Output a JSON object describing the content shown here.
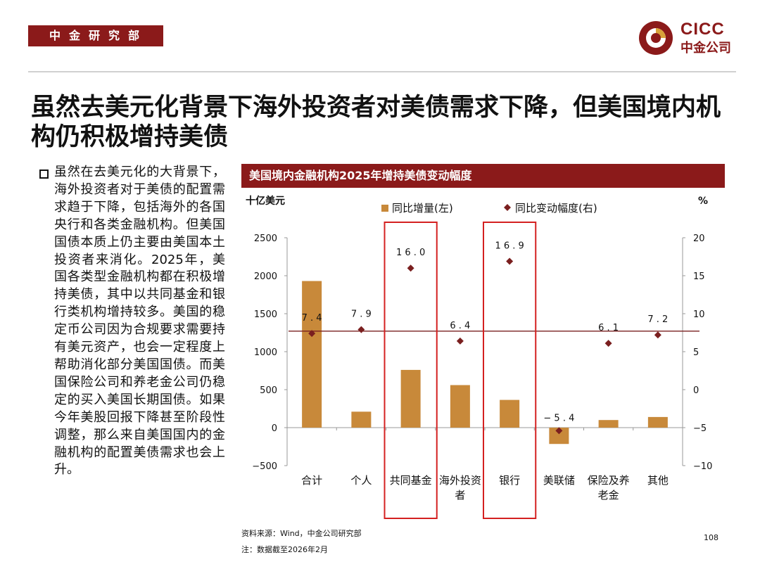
{
  "header": {
    "department": "中金研究部"
  },
  "logo": {
    "english": "CICC",
    "chinese": "中金公司"
  },
  "title": "虽然去美元化背景下海外投资者对美债需求下降，但美国境内机构仍积极增持美债",
  "bullet": "虽然在去美元化的大背景下，海外投资者对于美债的配置需求趋于下降，包括海外的各国央行和各类金融机构。但美国国债本质上仍主要由美国本土投资者来消化。2025年，美国各类型金融机构都在积极增持美债，其中以共同基金和银行类机构增持较多。美国的稳定币公司因为合规要求需要持有美元资产，也会一定程度上帮助消化部分美国国债。而美国保险公司和养老金公司仍稳定的买入美国长期国债。如果今年美股回报下降甚至阶段性调整，那么来自美国国内的金融机构的配置美债需求也会上升。",
  "chart_header": "美国境内金融机构2025年增持美债变动幅度",
  "footer": {
    "source": "资料来源：Wind，中金公司研究部",
    "note": "注：数据截至2026年2月",
    "page": "108"
  },
  "colors": {
    "brand": "#8b1a1a",
    "bar": "#c8893a",
    "marker": "#7a1f1f",
    "highlight": "#d42020"
  },
  "chart_data": {
    "type": "bar",
    "y_left_label": "十亿美元",
    "y_right_label": "%",
    "categories": [
      "合计",
      "个人",
      "共同基金",
      "海外投资者",
      "银行",
      "美联储",
      "保险及养老金",
      "其他"
    ],
    "categories_display": [
      [
        "合计"
      ],
      [
        "个人"
      ],
      [
        "共同基金"
      ],
      [
        "海外投资",
        "者"
      ],
      [
        "银行"
      ],
      [
        "美联储"
      ],
      [
        "保险及养",
        "老金"
      ],
      [
        "其他"
      ]
    ],
    "series": [
      {
        "name": "同比增量(左)",
        "kind": "bar",
        "axis": "left",
        "values": [
          1930,
          210,
          760,
          560,
          365,
          -215,
          100,
          140
        ]
      },
      {
        "name": "同比变动幅度(右)",
        "kind": "point",
        "axis": "right",
        "values": [
          7.4,
          7.9,
          16.0,
          6.4,
          16.9,
          -5.4,
          6.1,
          7.2
        ],
        "labels": [
          "7.4",
          "7.9",
          "16.0",
          "6.4",
          "16.9",
          "-5.4",
          "6.1",
          "7.2"
        ]
      }
    ],
    "ylim_left": [
      -500,
      2500
    ],
    "yticks_left": [
      "2500",
      "2000",
      "1500",
      "1000",
      "500",
      "0",
      "-500"
    ],
    "ylim_right": [
      -10,
      20
    ],
    "yticks_right": [
      "20",
      "15",
      "10",
      "5",
      "0",
      "-5",
      "-10"
    ],
    "reference_line_right": 7.7,
    "highlighted_categories": [
      "共同基金",
      "银行"
    ],
    "legend_position": "top"
  }
}
